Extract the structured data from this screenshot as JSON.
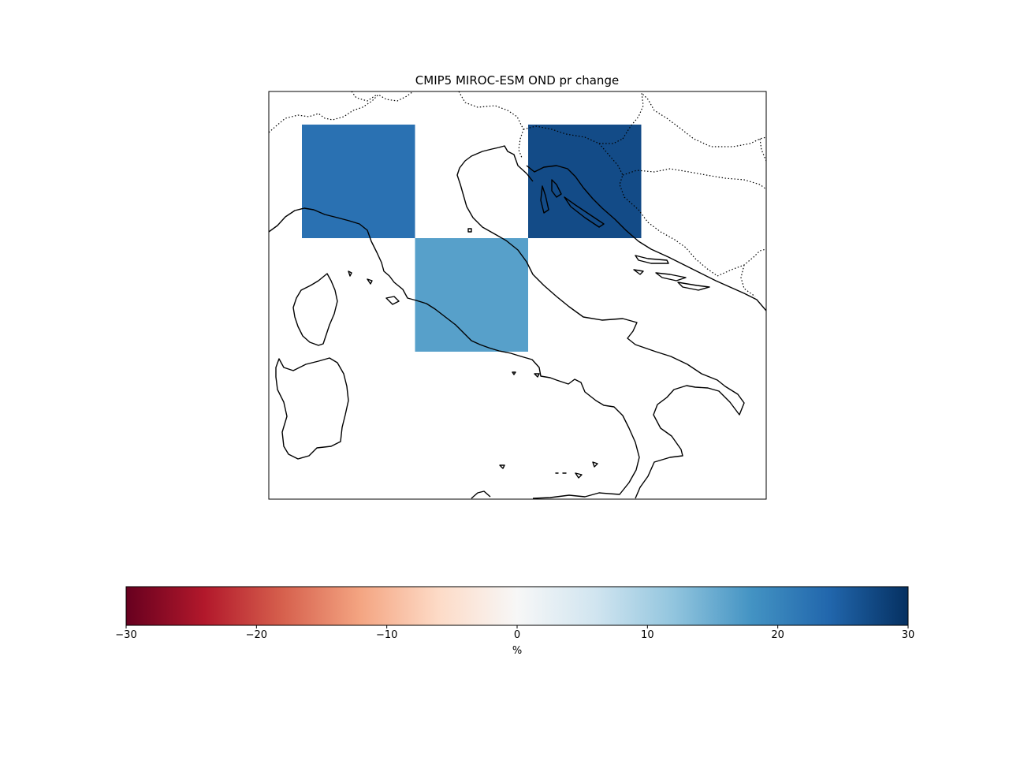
{
  "title": "CMIP5 MIROC-ESM OND pr change",
  "map": {
    "region": "Italy / Adriatic",
    "cells": [
      {
        "row": 0,
        "col": 0,
        "value": 22.5
      },
      {
        "row": 0,
        "col": 2,
        "value": 27
      },
      {
        "row": 1,
        "col": 1,
        "value": 16.5
      }
    ]
  },
  "colorbar": {
    "label": "%",
    "min": -30,
    "max": 30,
    "ticks": [
      "−30",
      "−20",
      "−10",
      "0",
      "10",
      "20",
      "30"
    ],
    "tick_values": [
      -30,
      -20,
      -10,
      0,
      10,
      20,
      30
    ],
    "colormap": "RdBu",
    "stops": [
      "#67001f",
      "#b2182b",
      "#d6604d",
      "#f4a582",
      "#fddbc7",
      "#f7f7f7",
      "#d1e5f0",
      "#92c5de",
      "#4393c3",
      "#2166ac",
      "#053061"
    ]
  }
}
